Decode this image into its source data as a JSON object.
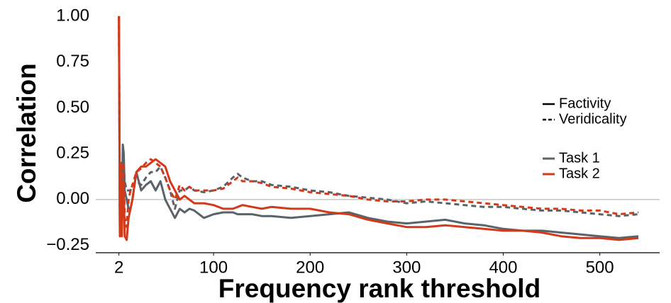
{
  "chart_data": {
    "type": "line",
    "xlabel": "Frequency rank threshold",
    "ylabel": "Correlation",
    "xlim": [
      -22,
      562
    ],
    "ylim": [
      -0.29,
      1.05
    ],
    "xticks": [
      2,
      100,
      200,
      300,
      400,
      500
    ],
    "yticks": [
      {
        "value": 1,
        "label": "1.00"
      },
      {
        "value": 0.75,
        "label": "0.75"
      },
      {
        "value": 0.5,
        "label": "0.50"
      },
      {
        "value": 0.25,
        "label": "0.25"
      },
      {
        "value": 0,
        "label": "0.00"
      },
      {
        "value": -0.25,
        "label": "−0.25"
      }
    ],
    "hline": 0,
    "linetype_legend": [
      {
        "label": "Factivity",
        "dash": "solid"
      },
      {
        "label": "Veridicality",
        "dash": "dashed"
      }
    ],
    "color_legend": [
      {
        "label": "Task 1",
        "color": "#59636a"
      },
      {
        "label": "Task 2",
        "color": "#d13a1a"
      }
    ],
    "x": [
      2,
      3,
      4,
      5,
      6,
      7,
      8,
      10,
      12,
      14,
      16,
      20,
      25,
      30,
      35,
      40,
      45,
      50,
      55,
      60,
      65,
      70,
      75,
      80,
      90,
      100,
      110,
      120,
      125,
      130,
      140,
      150,
      160,
      180,
      200,
      220,
      240,
      260,
      280,
      300,
      320,
      340,
      360,
      380,
      400,
      420,
      440,
      460,
      480,
      500,
      520,
      540
    ],
    "series": [
      {
        "color": "#59636a",
        "dash": "solid",
        "values": [
          1.0,
          -0.18,
          0.2,
          -0.1,
          0.3,
          0.25,
          0.05,
          0.0,
          -0.05,
          -0.05,
          0.0,
          0.15,
          0.05,
          0.08,
          0.1,
          0.05,
          0.1,
          0.0,
          -0.05,
          -0.1,
          -0.05,
          -0.07,
          -0.05,
          -0.06,
          -0.1,
          -0.08,
          -0.07,
          -0.07,
          -0.08,
          -0.08,
          -0.08,
          -0.09,
          -0.09,
          -0.1,
          -0.09,
          -0.08,
          -0.07,
          -0.1,
          -0.12,
          -0.13,
          -0.12,
          -0.11,
          -0.13,
          -0.14,
          -0.16,
          -0.17,
          -0.17,
          -0.18,
          -0.19,
          -0.2,
          -0.21,
          -0.2
        ]
      },
      {
        "color": "#59636a",
        "dash": "dashed",
        "values": [
          1.0,
          -0.15,
          0.1,
          0.05,
          0.25,
          0.2,
          0.1,
          0.05,
          0.05,
          0.05,
          0.08,
          0.1,
          0.08,
          0.12,
          0.15,
          0.15,
          0.18,
          0.12,
          0.05,
          -0.05,
          0.05,
          0.05,
          0.07,
          0.05,
          0.04,
          0.05,
          0.07,
          0.12,
          0.14,
          0.12,
          0.1,
          0.1,
          0.08,
          0.07,
          0.05,
          0.04,
          0.02,
          0.01,
          0.0,
          -0.02,
          -0.01,
          -0.02,
          -0.03,
          -0.04,
          -0.04,
          -0.05,
          -0.06,
          -0.06,
          -0.07,
          -0.08,
          -0.09,
          -0.08
        ]
      },
      {
        "color": "#d13a1a",
        "dash": "solid",
        "values": [
          1.0,
          -0.2,
          0.2,
          -0.2,
          0.1,
          0.05,
          -0.2,
          -0.22,
          -0.1,
          -0.05,
          0.0,
          0.15,
          0.18,
          0.18,
          0.2,
          0.22,
          0.2,
          0.18,
          0.1,
          0.05,
          0.0,
          0.02,
          0.0,
          -0.02,
          -0.02,
          -0.03,
          -0.05,
          -0.05,
          -0.04,
          -0.03,
          -0.04,
          -0.05,
          -0.04,
          -0.05,
          -0.05,
          -0.07,
          -0.08,
          -0.11,
          -0.13,
          -0.15,
          -0.15,
          -0.14,
          -0.15,
          -0.16,
          -0.17,
          -0.17,
          -0.18,
          -0.2,
          -0.21,
          -0.21,
          -0.22,
          -0.21
        ]
      },
      {
        "color": "#d13a1a",
        "dash": "dashed",
        "values": [
          1.0,
          -0.1,
          0.15,
          0.0,
          0.2,
          0.15,
          -0.1,
          -0.15,
          0.0,
          0.05,
          0.08,
          0.15,
          0.17,
          0.2,
          0.22,
          0.2,
          0.18,
          0.12,
          0.05,
          0.0,
          0.08,
          0.05,
          0.07,
          0.05,
          0.05,
          0.05,
          0.06,
          0.1,
          0.12,
          0.1,
          0.1,
          0.09,
          0.07,
          0.06,
          0.04,
          0.03,
          0.02,
          0.0,
          -0.01,
          -0.01,
          0.0,
          0.0,
          -0.01,
          -0.02,
          -0.03,
          -0.04,
          -0.05,
          -0.05,
          -0.06,
          -0.06,
          -0.08,
          -0.07
        ]
      }
    ]
  }
}
